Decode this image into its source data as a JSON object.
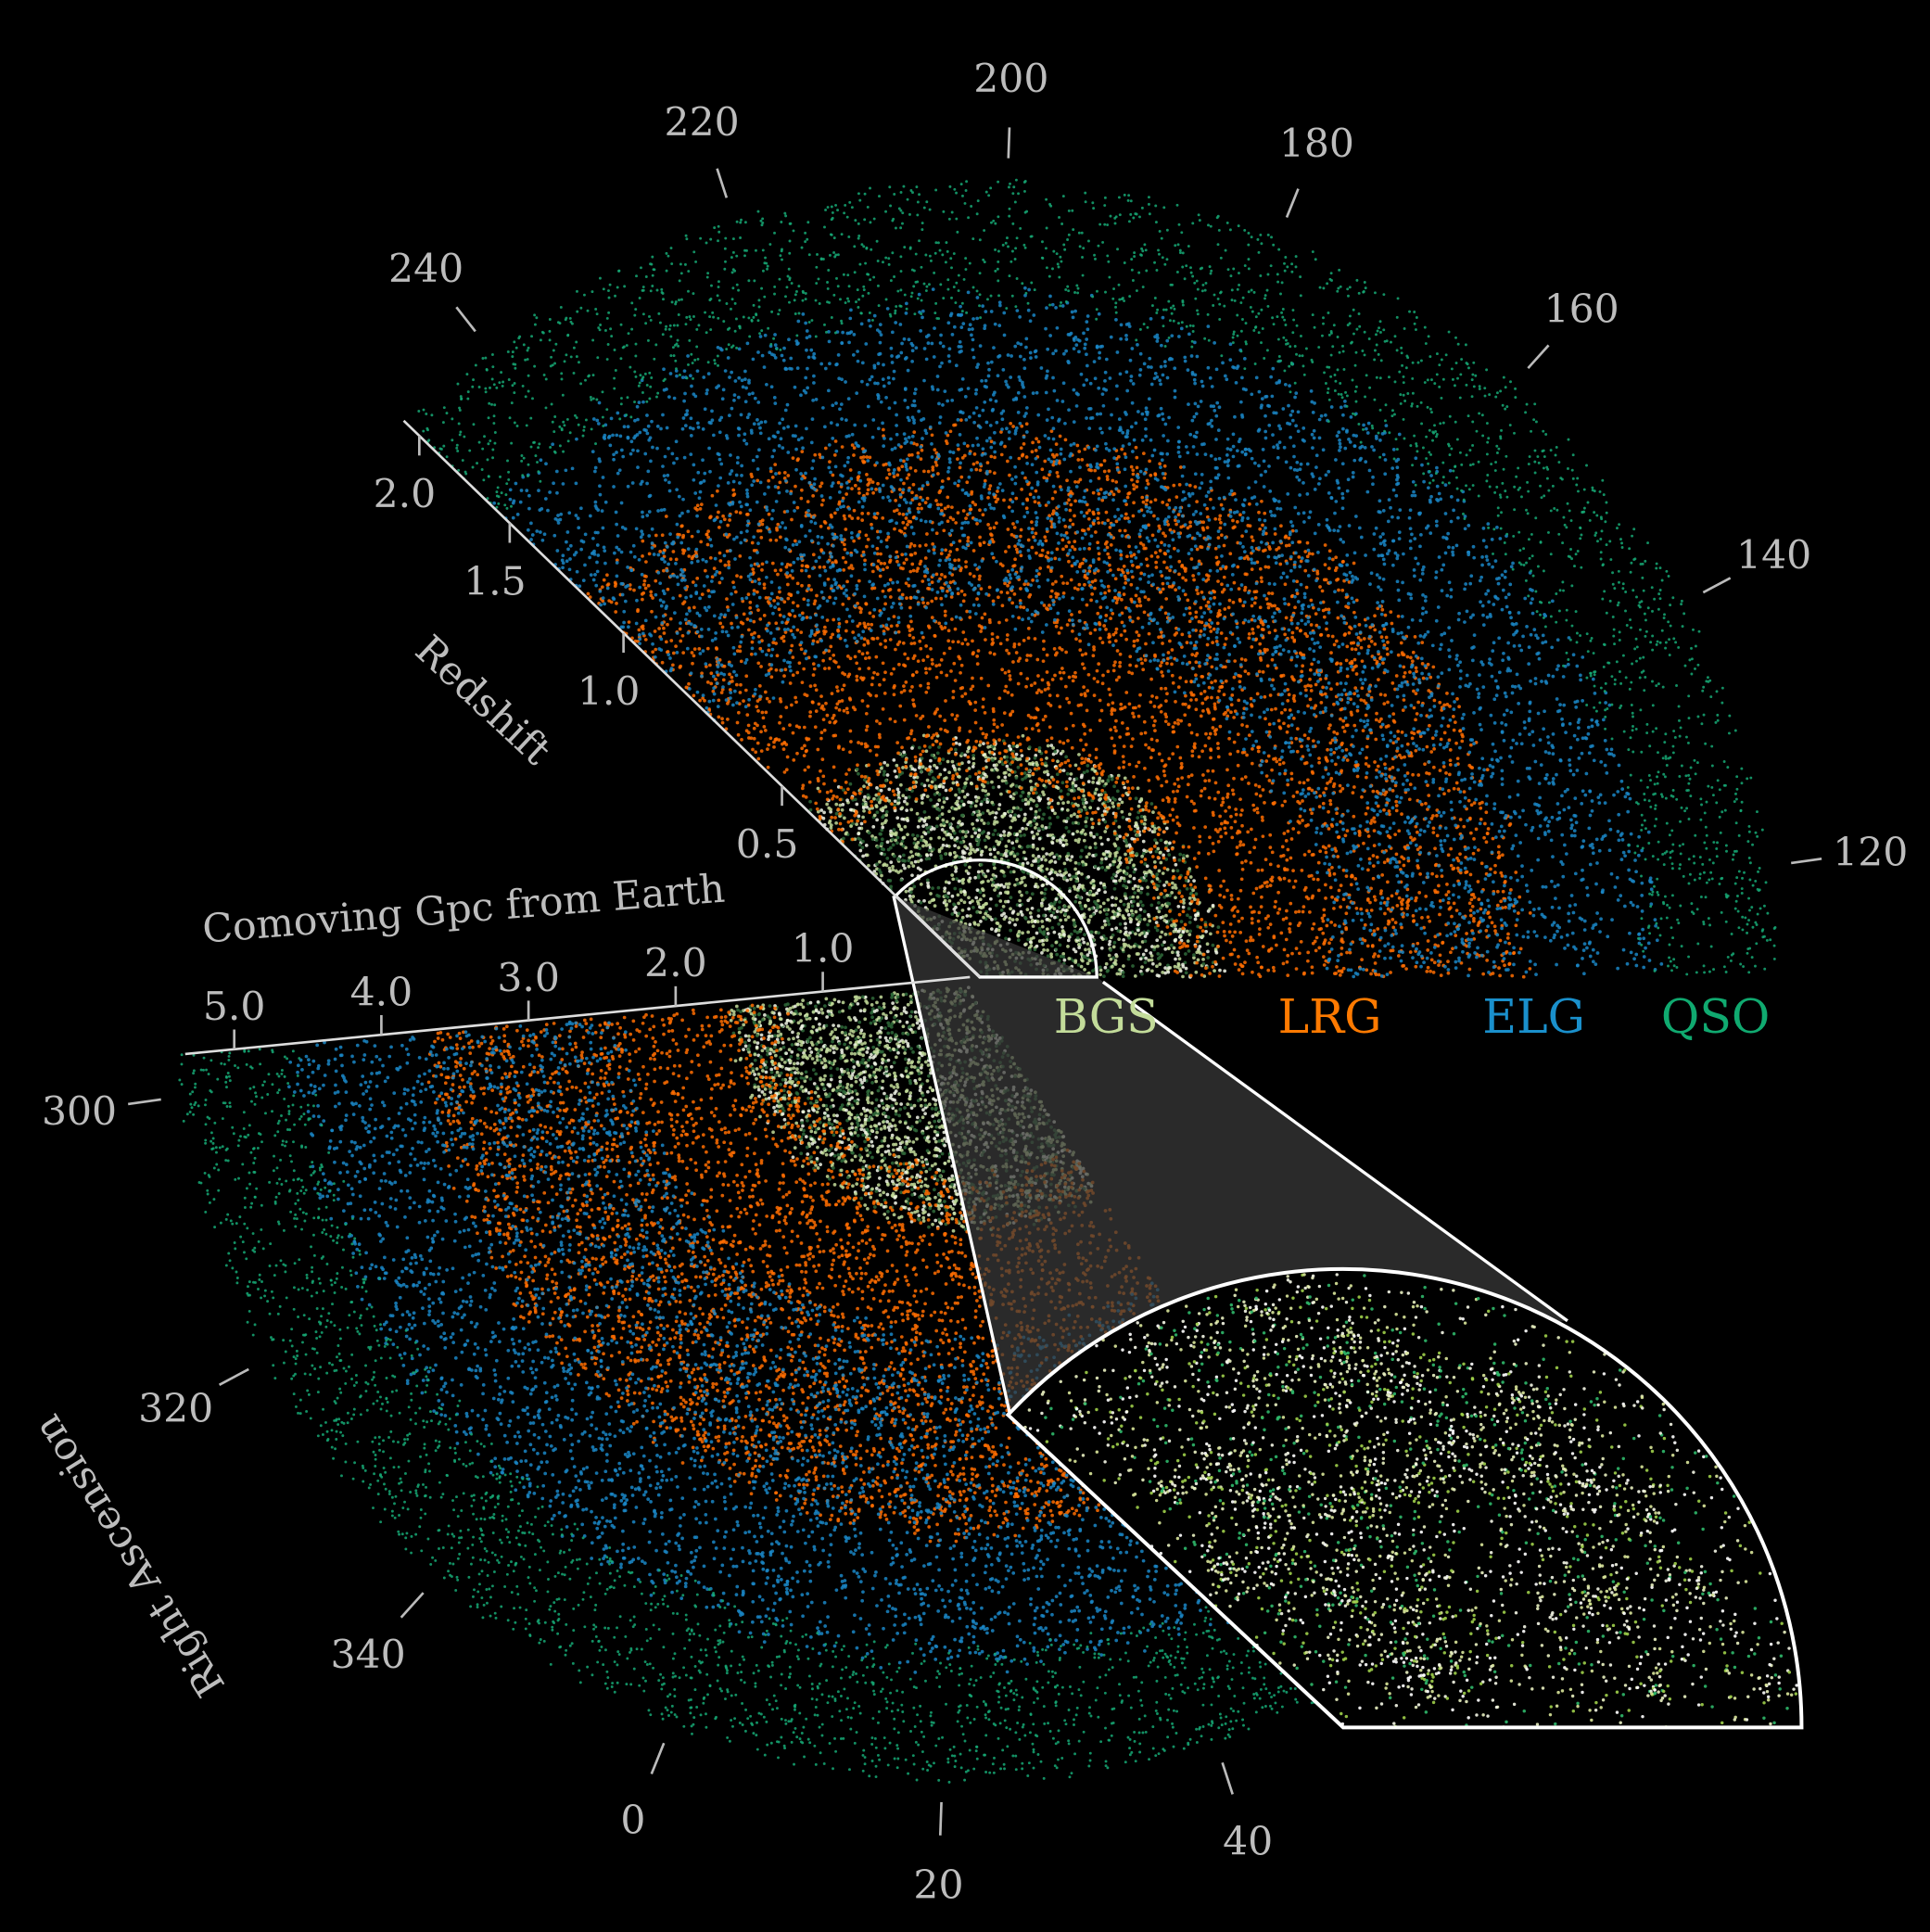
{
  "chart_data": {
    "type": "scatter",
    "projection": "polar wedge (right ascension vs. comoving distance)",
    "radial_axis": {
      "label": "Comoving Gpc from Earth",
      "ticks": [
        1.0,
        2.0,
        3.0,
        4.0,
        5.0
      ],
      "tick_labels": [
        "1.0",
        "2.0",
        "3.0",
        "4.0",
        "5.0"
      ]
    },
    "redshift_axis": {
      "label": "Redshift",
      "ticks": [
        0.5,
        1.0,
        1.5,
        2.0
      ],
      "tick_labels": [
        "0.5",
        "1.0",
        "1.5",
        "2.0"
      ],
      "comoving_gpc_at_tick": [
        1.86,
        3.35,
        4.42,
        5.27
      ]
    },
    "angular_axis": {
      "label": "Right Ascension",
      "upper_ticks": [
        120,
        140,
        160,
        180,
        200,
        220,
        240
      ],
      "upper_tick_labels": [
        "120",
        "140",
        "160",
        "180",
        "200",
        "220",
        "240"
      ],
      "lower_ticks": [
        300,
        320,
        340,
        0,
        20,
        40
      ],
      "lower_tick_labels": [
        "300",
        "320",
        "340",
        "0",
        "20",
        "40"
      ]
    },
    "series": [
      {
        "name": "BGS",
        "color": "#c3dc9a",
        "gpc_range": [
          0.0,
          1.6
        ]
      },
      {
        "name": "LRG",
        "color": "#ff6d00",
        "gpc_range": [
          1.3,
          3.7
        ]
      },
      {
        "name": "ELG",
        "color": "#1a86c6",
        "gpc_range": [
          2.4,
          4.6
        ]
      },
      {
        "name": "QSO",
        "color": "#16a874",
        "gpc_range": [
          4.5,
          5.4
        ]
      }
    ],
    "inset": {
      "sample": "BGS",
      "gpc_range": [
        0.0,
        0.8
      ],
      "description_shown": "zoomed region"
    },
    "grid": false,
    "legend_placement": "center-right, below upper wedge"
  },
  "legend": [
    "BGS",
    "LRG",
    "ELG",
    "QSO"
  ]
}
